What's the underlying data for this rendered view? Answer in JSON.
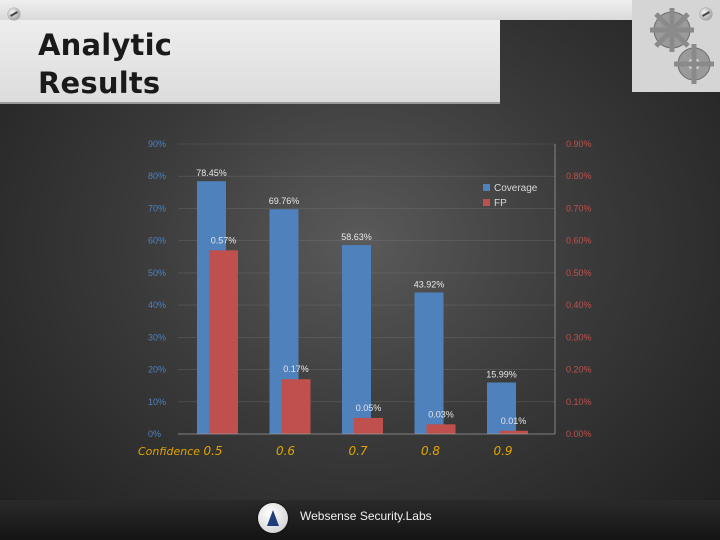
{
  "slide": {
    "title": "Analytic\nResults",
    "footer_text": "Websense Security.Labs"
  },
  "colors": {
    "coverage": "#4f81bd",
    "fp": "#c0504d",
    "left_axis": "#4f81bd",
    "right_axis": "#c0504d"
  },
  "chart_data": {
    "type": "bar",
    "xlabel": "Confidence",
    "categories": [
      "0.5",
      "0.6",
      "0.7",
      "0.8",
      "0.9"
    ],
    "y_left_ticks": [
      "0%",
      "10%",
      "20%",
      "30%",
      "40%",
      "50%",
      "60%",
      "70%",
      "80%",
      "90%"
    ],
    "y_right_ticks": [
      "0.00%",
      "0.10%",
      "0.20%",
      "0.30%",
      "0.40%",
      "0.50%",
      "0.60%",
      "0.70%",
      "0.80%",
      "0.90%"
    ],
    "ylim_left": [
      0,
      90
    ],
    "ylim_right": [
      0,
      0.9
    ],
    "legend_position": "top-right",
    "series": [
      {
        "name": "Coverage",
        "axis": "left",
        "values": [
          78.45,
          69.76,
          58.63,
          43.92,
          15.99
        ],
        "labels": [
          "78.45%",
          "69.76%",
          "58.63%",
          "43.92%",
          "15.99%"
        ]
      },
      {
        "name": "FP",
        "axis": "right",
        "values": [
          0.57,
          0.17,
          0.05,
          0.03,
          0.01
        ],
        "labels": [
          "0.57%",
          "0.17%",
          "0.05%",
          "0.03%",
          "0.01%"
        ]
      }
    ]
  }
}
